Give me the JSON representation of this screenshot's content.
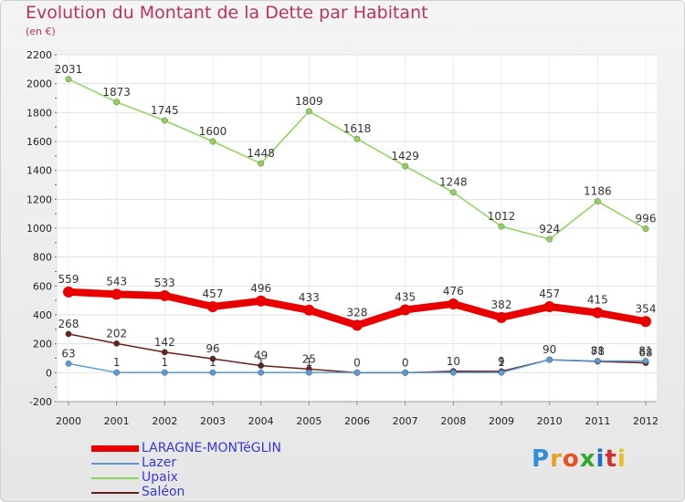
{
  "title": "Evolution du Montant de la Dette par Habitant",
  "subtitle": "(en €)",
  "logo": {
    "text": "Proxiti",
    "colors": [
      "#2f8fd8",
      "#e8a020",
      "#e85020",
      "#2fa82f",
      "#1a6fc8",
      "#d03030",
      "#e8c020"
    ]
  },
  "chart_data": {
    "type": "line",
    "x": [
      "2000",
      "2001",
      "2002",
      "2003",
      "2004",
      "2005",
      "2006",
      "2007",
      "2008",
      "2009",
      "2010",
      "2011",
      "2012"
    ],
    "ylim": [
      -200,
      2200
    ],
    "yticks": [
      "2200",
      "2000",
      "1800",
      "1600",
      "1400",
      "1200",
      "1000",
      "800",
      "600",
      "400",
      "200",
      "0",
      "-200"
    ],
    "grid": true,
    "legend_position": "bottom-left",
    "series": [
      {
        "name": "LARAGNE-MONTéGLIN",
        "color": "#e80000",
        "width": 8,
        "values": [
          559,
          543,
          533,
          457,
          496,
          433,
          328,
          435,
          476,
          382,
          457,
          415,
          354
        ],
        "labels": [
          "559",
          "543",
          "533",
          "457",
          "496",
          "433",
          "328",
          "435",
          "476",
          "382",
          "457",
          "415",
          "354"
        ]
      },
      {
        "name": "Lazer",
        "color": "#5b9bd5",
        "width": 1.5,
        "values": [
          63,
          1,
          1,
          1,
          1,
          1,
          1,
          1,
          1,
          1,
          90,
          81,
          81
        ],
        "labels": [
          "63",
          "1",
          "1",
          "1",
          "1",
          "1",
          "",
          "",
          "",
          "1",
          "",
          "81",
          "81"
        ]
      },
      {
        "name": "Upaix",
        "color": "#8ed35a",
        "width": 1.5,
        "values": [
          2031,
          1873,
          1745,
          1600,
          1448,
          1809,
          1618,
          1429,
          1248,
          1012,
          924,
          1186,
          996
        ],
        "labels": [
          "2031",
          "1873",
          "1745",
          "1600",
          "1448",
          "1809",
          "1618",
          "1429",
          "1248",
          "1012",
          "924",
          "1186",
          "996"
        ]
      },
      {
        "name": "Saléon",
        "color": "#6b2020",
        "width": 1.5,
        "values": [
          268,
          202,
          142,
          96,
          49,
          25,
          0,
          0,
          10,
          9,
          90,
          78,
          68
        ],
        "labels": [
          "268",
          "202",
          "142",
          "96",
          "49",
          "25",
          "0",
          "0",
          "10",
          "9",
          "90",
          "78",
          "68"
        ]
      }
    ]
  }
}
